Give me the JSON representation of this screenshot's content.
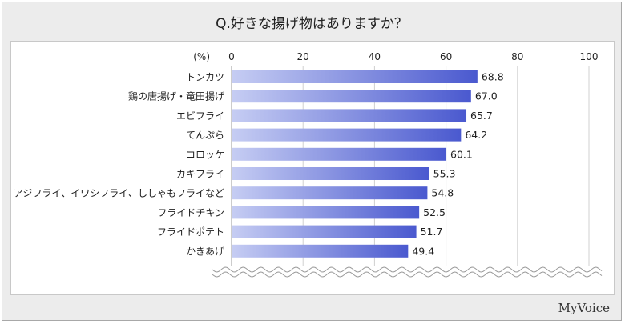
{
  "title": "Q.好きな揚げ物はありますか？",
  "brand": "MyVoice",
  "colors": {
    "bar_start": "#c6cdf3",
    "bar_end": "#4a59cf",
    "grid": "#d0d0d0"
  },
  "chart_data": {
    "type": "bar",
    "orientation": "horizontal",
    "unit_label": "(%)",
    "categories": [
      "トンカツ",
      "鶏の唐揚げ・竜田揚げ",
      "エビフライ",
      "てんぷら",
      "コロッケ",
      "カキフライ",
      "アジフライ、イワシフライ、ししゃもフライなど",
      "フライドチキン",
      "フライドポテト",
      "かきあげ"
    ],
    "values": [
      68.8,
      67.0,
      65.7,
      64.2,
      60.1,
      55.3,
      54.8,
      52.5,
      51.7,
      49.4
    ],
    "value_labels": [
      "68.8",
      "67.0",
      "65.7",
      "64.2",
      "60.1",
      "55.3",
      "54.8",
      "52.5",
      "51.7",
      "49.4"
    ],
    "xticks": [
      "0",
      "20",
      "40",
      "60",
      "80",
      "100"
    ],
    "xlim": [
      0,
      100
    ],
    "grid": true,
    "axis_break": true
  }
}
